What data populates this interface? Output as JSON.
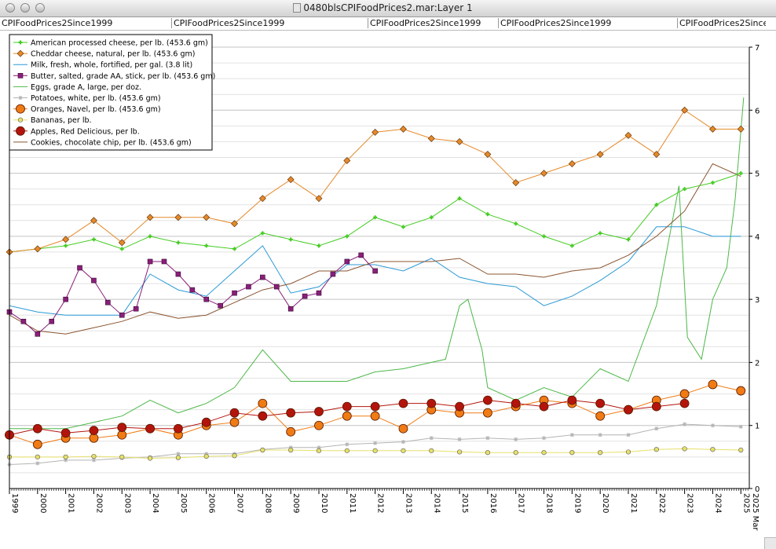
{
  "window": {
    "title": "0480blsCPIFoodPrices2.mar:Layer 1",
    "tabs": [
      "CPIFoodPrices2Since1999",
      "CPIFoodPrices2Since1999",
      "CPIFoodPrices2Since1999",
      "CPIFoodPrices2Since1999",
      "CPIFoodPrices2Since1"
    ]
  },
  "chart_data": {
    "type": "line",
    "title": "",
    "xlabel": "",
    "ylabel": "",
    "xlim": [
      1999.0,
      2025.3
    ],
    "ylim": [
      0,
      7
    ],
    "x_ticks": [
      "1999",
      "2000",
      "2001",
      "2002",
      "2003",
      "2004",
      "2005",
      "2006",
      "2007",
      "2008",
      "2009",
      "2010",
      "2011",
      "2012",
      "2013",
      "2014",
      "2015",
      "2016",
      "2017",
      "2018",
      "2019",
      "2020",
      "2021",
      "2022",
      "2023",
      "2024",
      "2025"
    ],
    "x_end_label": "2025 Mar",
    "y_ticks": [
      "0",
      "1",
      "2",
      "3",
      "4",
      "5",
      "6",
      "7"
    ],
    "y_axis_side": "right",
    "grid": true,
    "legend": "top-left",
    "colors": {
      "cheese": "#44cc22",
      "cheddar": "#e58a2a",
      "milk": "#2b9ad6",
      "butter": "#8a1f7a",
      "eggs": "#4cb848",
      "potatoes": "#b4b4b4",
      "oranges": "#f07b14",
      "bananas": "#e6e06a",
      "apples": "#b3140c",
      "cookies": "#8a5430"
    },
    "series": [
      {
        "name": "American processed cheese, per lb. (453.6 gm)",
        "key": "cheese",
        "marker": "plus",
        "points": [
          [
            1999,
            3.75
          ],
          [
            2000,
            3.8
          ],
          [
            2001,
            3.85
          ],
          [
            2002,
            3.95
          ],
          [
            2003,
            3.8
          ],
          [
            2004,
            4.0
          ],
          [
            2005,
            3.9
          ],
          [
            2006,
            3.85
          ],
          [
            2007,
            3.8
          ],
          [
            2008,
            4.05
          ],
          [
            2009,
            3.95
          ],
          [
            2010,
            3.85
          ],
          [
            2011,
            4.0
          ],
          [
            2012,
            4.3
          ],
          [
            2013,
            4.15
          ],
          [
            2014,
            4.3
          ],
          [
            2015,
            4.6
          ],
          [
            2016,
            4.35
          ],
          [
            2017,
            4.2
          ],
          [
            2018,
            4.0
          ],
          [
            2019,
            3.85
          ],
          [
            2020,
            4.05
          ],
          [
            2021,
            3.95
          ],
          [
            2022,
            4.5
          ],
          [
            2023,
            4.75
          ],
          [
            2024,
            4.85
          ],
          [
            2025,
            5.0
          ]
        ]
      },
      {
        "name": "Cheddar cheese, natural, per lb. (453.6 gm)",
        "key": "cheddar",
        "marker": "diamond",
        "points": [
          [
            1999,
            3.75
          ],
          [
            2000,
            3.8
          ],
          [
            2001,
            3.95
          ],
          [
            2002,
            4.25
          ],
          [
            2003,
            3.9
          ],
          [
            2004,
            4.3
          ],
          [
            2005,
            4.3
          ],
          [
            2006,
            4.3
          ],
          [
            2007,
            4.2
          ],
          [
            2008,
            4.6
          ],
          [
            2009,
            4.9
          ],
          [
            2010,
            4.6
          ],
          [
            2011,
            5.2
          ],
          [
            2012,
            5.65
          ],
          [
            2013,
            5.7
          ],
          [
            2014,
            5.55
          ],
          [
            2015,
            5.5
          ],
          [
            2016,
            5.3
          ],
          [
            2017,
            4.85
          ],
          [
            2018,
            5.0
          ],
          [
            2019,
            5.15
          ],
          [
            2020,
            5.3
          ],
          [
            2021,
            5.6
          ],
          [
            2022,
            5.3
          ],
          [
            2023,
            6.0
          ],
          [
            2024,
            5.7
          ],
          [
            2025,
            5.7
          ]
        ]
      },
      {
        "name": "Milk, fresh, whole, fortified, per gal. (3.8 lit)",
        "key": "milk",
        "marker": "none",
        "points": [
          [
            1999,
            2.9
          ],
          [
            2000,
            2.8
          ],
          [
            2001,
            2.75
          ],
          [
            2002,
            2.75
          ],
          [
            2003,
            2.75
          ],
          [
            2004,
            3.4
          ],
          [
            2005,
            3.15
          ],
          [
            2006,
            3.05
          ],
          [
            2007,
            3.45
          ],
          [
            2008,
            3.85
          ],
          [
            2009,
            3.1
          ],
          [
            2010,
            3.2
          ],
          [
            2011,
            3.55
          ],
          [
            2012,
            3.55
          ],
          [
            2013,
            3.45
          ],
          [
            2014,
            3.65
          ],
          [
            2015,
            3.35
          ],
          [
            2016,
            3.25
          ],
          [
            2017,
            3.2
          ],
          [
            2018,
            2.9
          ],
          [
            2019,
            3.05
          ],
          [
            2020,
            3.3
          ],
          [
            2021,
            3.6
          ],
          [
            2022,
            4.15
          ],
          [
            2023,
            4.15
          ],
          [
            2024,
            4.0
          ],
          [
            2025,
            4.0
          ]
        ]
      },
      {
        "name": "Butter, salted, grade AA, stick, per lb. (453.6 gm)",
        "key": "butter",
        "marker": "square",
        "points": [
          [
            1999,
            2.8
          ],
          [
            1999.5,
            2.65
          ],
          [
            2000,
            2.45
          ],
          [
            2000.5,
            2.65
          ],
          [
            2001,
            3.0
          ],
          [
            2001.5,
            3.5
          ],
          [
            2002,
            3.3
          ],
          [
            2002.5,
            2.95
          ],
          [
            2003,
            2.75
          ],
          [
            2003.5,
            2.85
          ],
          [
            2004,
            3.6
          ],
          [
            2004.5,
            3.6
          ],
          [
            2005,
            3.4
          ],
          [
            2005.5,
            3.15
          ],
          [
            2006,
            3.0
          ],
          [
            2006.5,
            2.9
          ],
          [
            2007,
            3.1
          ],
          [
            2007.5,
            3.2
          ],
          [
            2008,
            3.35
          ],
          [
            2008.5,
            3.2
          ],
          [
            2009,
            2.85
          ],
          [
            2009.5,
            3.05
          ],
          [
            2010,
            3.1
          ],
          [
            2010.5,
            3.4
          ],
          [
            2011,
            3.6
          ],
          [
            2011.5,
            3.7
          ],
          [
            2012,
            3.45
          ]
        ]
      },
      {
        "name": "Eggs, grade A, large, per doz.",
        "key": "eggs",
        "marker": "none",
        "points": [
          [
            1999,
            0.95
          ],
          [
            2000,
            0.95
          ],
          [
            2001,
            0.95
          ],
          [
            2002,
            1.05
          ],
          [
            2003,
            1.15
          ],
          [
            2004,
            1.4
          ],
          [
            2005,
            1.2
          ],
          [
            2006,
            1.35
          ],
          [
            2007,
            1.6
          ],
          [
            2008,
            2.2
          ],
          [
            2009,
            1.7
          ],
          [
            2010,
            1.7
          ],
          [
            2011,
            1.7
          ],
          [
            2012,
            1.85
          ],
          [
            2013,
            1.9
          ],
          [
            2014,
            2.0
          ],
          [
            2014.5,
            2.05
          ],
          [
            2015,
            2.9
          ],
          [
            2015.3,
            3.0
          ],
          [
            2015.8,
            2.2
          ],
          [
            2016,
            1.6
          ],
          [
            2017,
            1.4
          ],
          [
            2018,
            1.6
          ],
          [
            2019,
            1.45
          ],
          [
            2020,
            1.9
          ],
          [
            2021,
            1.7
          ],
          [
            2022,
            2.9
          ],
          [
            2022.8,
            4.8
          ],
          [
            2023.1,
            2.4
          ],
          [
            2023.6,
            2.05
          ],
          [
            2024,
            3.0
          ],
          [
            2024.5,
            3.5
          ],
          [
            2024.8,
            4.6
          ],
          [
            2025.1,
            6.2
          ]
        ]
      },
      {
        "name": "Potatoes, white, per lb. (453.6 gm)",
        "key": "potatoes",
        "marker": "star",
        "points": [
          [
            1999,
            0.38
          ],
          [
            2000,
            0.4
          ],
          [
            2001,
            0.45
          ],
          [
            2002,
            0.45
          ],
          [
            2003,
            0.48
          ],
          [
            2004,
            0.5
          ],
          [
            2005,
            0.55
          ],
          [
            2006,
            0.55
          ],
          [
            2007,
            0.55
          ],
          [
            2008,
            0.62
          ],
          [
            2009,
            0.65
          ],
          [
            2010,
            0.65
          ],
          [
            2011,
            0.7
          ],
          [
            2012,
            0.72
          ],
          [
            2013,
            0.74
          ],
          [
            2014,
            0.8
          ],
          [
            2015,
            0.78
          ],
          [
            2016,
            0.8
          ],
          [
            2017,
            0.78
          ],
          [
            2018,
            0.8
          ],
          [
            2019,
            0.85
          ],
          [
            2020,
            0.85
          ],
          [
            2021,
            0.85
          ],
          [
            2022,
            0.95
          ],
          [
            2023,
            1.02
          ],
          [
            2024,
            1.0
          ],
          [
            2025,
            0.98
          ]
        ]
      },
      {
        "name": "Oranges, Navel, per lb. (453.6 gm)",
        "key": "oranges",
        "marker": "circle",
        "points": [
          [
            1999,
            0.85
          ],
          [
            2000,
            0.7
          ],
          [
            2001,
            0.8
          ],
          [
            2002,
            0.8
          ],
          [
            2003,
            0.85
          ],
          [
            2004,
            0.95
          ],
          [
            2005,
            0.85
          ],
          [
            2006,
            1.0
          ],
          [
            2007,
            1.05
          ],
          [
            2008,
            1.35
          ],
          [
            2009,
            0.9
          ],
          [
            2010,
            1.0
          ],
          [
            2011,
            1.15
          ],
          [
            2012,
            1.15
          ],
          [
            2013,
            0.95
          ],
          [
            2014,
            1.25
          ],
          [
            2015,
            1.2
          ],
          [
            2016,
            1.2
          ],
          [
            2017,
            1.3
          ],
          [
            2018,
            1.4
          ],
          [
            2019,
            1.35
          ],
          [
            2020,
            1.15
          ],
          [
            2021,
            1.25
          ],
          [
            2022,
            1.4
          ],
          [
            2023,
            1.5
          ],
          [
            2024,
            1.65
          ],
          [
            2025,
            1.55
          ]
        ]
      },
      {
        "name": "Bananas, per lb.",
        "key": "bananas",
        "marker": "circle-small",
        "points": [
          [
            1999,
            0.5
          ],
          [
            2000,
            0.5
          ],
          [
            2001,
            0.5
          ],
          [
            2002,
            0.51
          ],
          [
            2003,
            0.5
          ],
          [
            2004,
            0.48
          ],
          [
            2005,
            0.49
          ],
          [
            2006,
            0.51
          ],
          [
            2007,
            0.52
          ],
          [
            2008,
            0.61
          ],
          [
            2009,
            0.61
          ],
          [
            2010,
            0.6
          ],
          [
            2011,
            0.6
          ],
          [
            2012,
            0.6
          ],
          [
            2013,
            0.6
          ],
          [
            2014,
            0.6
          ],
          [
            2015,
            0.58
          ],
          [
            2016,
            0.57
          ],
          [
            2017,
            0.57
          ],
          [
            2018,
            0.57
          ],
          [
            2019,
            0.57
          ],
          [
            2020,
            0.57
          ],
          [
            2021,
            0.58
          ],
          [
            2022,
            0.62
          ],
          [
            2023,
            0.63
          ],
          [
            2024,
            0.62
          ],
          [
            2025,
            0.61
          ]
        ]
      },
      {
        "name": "Apples, Red Delicious, per lb.",
        "key": "apples",
        "marker": "circle",
        "points": [
          [
            1999,
            0.85
          ],
          [
            2000,
            0.95
          ],
          [
            2001,
            0.88
          ],
          [
            2002,
            0.92
          ],
          [
            2003,
            0.97
          ],
          [
            2004,
            0.95
          ],
          [
            2005,
            0.95
          ],
          [
            2006,
            1.05
          ],
          [
            2007,
            1.2
          ],
          [
            2008,
            1.15
          ],
          [
            2009,
            1.2
          ],
          [
            2010,
            1.22
          ],
          [
            2011,
            1.3
          ],
          [
            2012,
            1.3
          ],
          [
            2013,
            1.35
          ],
          [
            2014,
            1.35
          ],
          [
            2015,
            1.3
          ],
          [
            2016,
            1.4
          ],
          [
            2017,
            1.35
          ],
          [
            2018,
            1.3
          ],
          [
            2019,
            1.4
          ],
          [
            2020,
            1.35
          ],
          [
            2021,
            1.25
          ],
          [
            2022,
            1.3
          ],
          [
            2023,
            1.35
          ]
        ]
      },
      {
        "name": "Cookies, chocolate chip, per lb. (453.6 gm)",
        "key": "cookies",
        "marker": "none",
        "points": [
          [
            1999,
            2.75
          ],
          [
            2000,
            2.5
          ],
          [
            2001,
            2.45
          ],
          [
            2002,
            2.55
          ],
          [
            2003,
            2.65
          ],
          [
            2004,
            2.8
          ],
          [
            2005,
            2.7
          ],
          [
            2006,
            2.75
          ],
          [
            2007,
            2.95
          ],
          [
            2008,
            3.15
          ],
          [
            2009,
            3.25
          ],
          [
            2010,
            3.45
          ],
          [
            2011,
            3.45
          ],
          [
            2012,
            3.6
          ],
          [
            2013,
            3.6
          ],
          [
            2014,
            3.6
          ],
          [
            2015,
            3.65
          ],
          [
            2016,
            3.4
          ],
          [
            2017,
            3.4
          ],
          [
            2018,
            3.35
          ],
          [
            2019,
            3.45
          ],
          [
            2020,
            3.5
          ],
          [
            2021,
            3.7
          ],
          [
            2022,
            4.0
          ],
          [
            2023,
            4.4
          ],
          [
            2024,
            5.15
          ],
          [
            2025,
            4.95
          ]
        ]
      }
    ]
  }
}
